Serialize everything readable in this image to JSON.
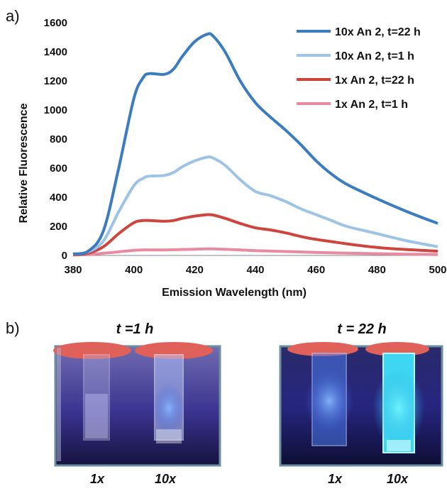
{
  "panel_a_label": "a)",
  "panel_b_label": "b)",
  "chart_data": {
    "type": "line",
    "title": "",
    "xlabel": "Emission Wavelength (nm)",
    "ylabel": "Relative Fluorescence",
    "xlim": [
      380,
      500
    ],
    "ylim": [
      0,
      1600
    ],
    "x_ticks": [
      "380",
      "400",
      "420",
      "440",
      "460",
      "480",
      "500"
    ],
    "y_ticks": [
      "0",
      "200",
      "400",
      "600",
      "800",
      "1000",
      "1200",
      "1400",
      "1600"
    ],
    "legend_position": "top-right",
    "grid": false,
    "x": [
      380,
      385,
      390,
      395,
      400,
      403,
      405,
      410,
      413,
      416,
      420,
      424,
      426,
      430,
      435,
      440,
      445,
      450,
      455,
      460,
      465,
      470,
      480,
      490,
      500
    ],
    "series": [
      {
        "name": "10x An 2, t=22 h",
        "color": "#3a7cbf",
        "values": [
          10,
          30,
          170,
          600,
          1080,
          1220,
          1250,
          1245,
          1280,
          1370,
          1470,
          1520,
          1510,
          1400,
          1200,
          1050,
          950,
          860,
          760,
          650,
          560,
          490,
          390,
          300,
          220
        ]
      },
      {
        "name": "10x An 2, t=1 h",
        "color": "#9dc3e6",
        "values": [
          10,
          25,
          100,
          300,
          480,
          530,
          545,
          550,
          570,
          610,
          650,
          675,
          670,
          620,
          520,
          440,
          410,
          370,
          320,
          280,
          240,
          200,
          150,
          100,
          60
        ]
      },
      {
        "name": "1x An 2, t=22 h",
        "color": "#d0443e",
        "values": [
          5,
          15,
          60,
          150,
          225,
          240,
          240,
          235,
          240,
          255,
          270,
          280,
          278,
          255,
          220,
          190,
          175,
          155,
          130,
          110,
          95,
          80,
          55,
          40,
          30
        ]
      },
      {
        "name": "1x An 2, t=1 h",
        "color": "#e98aa2",
        "values": [
          3,
          6,
          15,
          25,
          35,
          38,
          38,
          38,
          39,
          41,
          43,
          45,
          45,
          42,
          38,
          33,
          30,
          27,
          24,
          21,
          18,
          16,
          12,
          9,
          6
        ]
      }
    ]
  },
  "photos": [
    {
      "title": "t =1 h",
      "labels": [
        "1x",
        "10x"
      ]
    },
    {
      "title": "t = 22 h",
      "labels": [
        "1x",
        "10x"
      ]
    }
  ]
}
